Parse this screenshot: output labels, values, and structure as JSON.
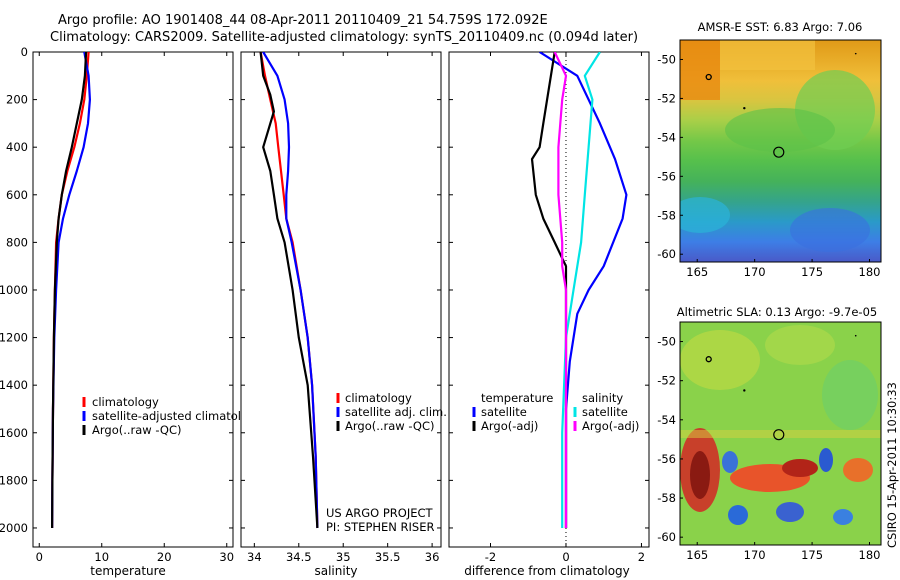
{
  "header": {
    "line1": "Argo profile: AO 1901408_44 08-Apr-2011 20110409_21 54.759S 172.092E",
    "line2": "Climatology: CARS2009. Satellite-adjusted climatology: synTS_20110409.nc (0.094d later)"
  },
  "credit": {
    "vertical_text": "CSIRO 15-Apr-2011 10:30:33",
    "project_line1": "US ARGO PROJECT",
    "project_line2": "PI: STEPHEN RISER"
  },
  "colors": {
    "climatology": "#ff0000",
    "satellite": "#0000ff",
    "argo": "#000000",
    "satellite_diff": "#00e5e5",
    "argo_diff": "#ff00ff"
  },
  "chart_data": [
    {
      "type": "line",
      "xlabel": "temperature",
      "ylabel": "",
      "xlim": [
        -1,
        31
      ],
      "ylim": [
        0,
        2080
      ],
      "y_reversed": true,
      "xticks": [
        0,
        10,
        20,
        30
      ],
      "yticks": [
        0,
        200,
        400,
        600,
        800,
        1000,
        1200,
        1400,
        1600,
        1800,
        2000
      ],
      "legend": [
        "climatology",
        "satellite-adjusted climatology",
        "Argo(..raw -QC)"
      ],
      "series": [
        {
          "name": "climatology",
          "color": "#ff0000",
          "x": [
            7.9,
            7.6,
            7.2,
            6.5,
            5.6,
            4.5,
            3.6,
            3.1,
            2.7,
            2.5,
            2.35,
            2.2,
            2.1,
            2.05
          ],
          "y": [
            0,
            100,
            200,
            300,
            400,
            500,
            600,
            700,
            800,
            1000,
            1200,
            1500,
            1800,
            2000
          ]
        },
        {
          "name": "satellite-adjusted climatology",
          "color": "#0000ff",
          "x": [
            7.2,
            7.9,
            8.1,
            7.8,
            7.1,
            6.0,
            4.8,
            3.8,
            3.1,
            2.7,
            2.4,
            2.2,
            2.1,
            2.05
          ],
          "y": [
            0,
            100,
            200,
            300,
            400,
            500,
            600,
            700,
            800,
            1000,
            1200,
            1500,
            1800,
            2000
          ]
        },
        {
          "name": "Argo(..raw -QC)",
          "color": "#000000",
          "x": [
            7.5,
            7.3,
            6.8,
            6.0,
            5.2,
            4.3,
            3.6,
            3.1,
            2.8,
            2.5,
            2.35,
            2.2,
            2.1,
            2.05
          ],
          "y": [
            0,
            100,
            200,
            300,
            400,
            500,
            600,
            700,
            800,
            1000,
            1200,
            1500,
            1800,
            2000
          ]
        }
      ]
    },
    {
      "type": "line",
      "xlabel": "salinity",
      "ylabel": "",
      "xlim": [
        33.85,
        36.1
      ],
      "ylim": [
        0,
        2080
      ],
      "y_reversed": true,
      "xticks": [
        34,
        34.5,
        35,
        35.5,
        36
      ],
      "xtick_labels": [
        "34",
        "34.5",
        "35",
        "35.5",
        "36"
      ],
      "yticks": [
        0,
        200,
        400,
        600,
        800,
        1000,
        1200,
        1400,
        1600,
        1800,
        2000
      ],
      "legend": [
        "climatology",
        "satellite adj. clim.",
        "Argo(..raw -QC)"
      ],
      "series": [
        {
          "name": "climatology",
          "color": "#ff0000",
          "x": [
            34.07,
            34.12,
            34.18,
            34.24,
            34.27,
            34.3,
            34.33,
            34.36,
            34.43,
            34.52,
            34.6,
            34.65,
            34.69,
            34.71
          ],
          "y": [
            0,
            100,
            200,
            300,
            400,
            500,
            600,
            700,
            800,
            1000,
            1200,
            1400,
            1700,
            2000
          ]
        },
        {
          "name": "satellite adj. clim.",
          "color": "#0000ff",
          "x": [
            34.1,
            34.26,
            34.34,
            34.38,
            34.39,
            34.38,
            34.36,
            34.36,
            34.42,
            34.52,
            34.6,
            34.65,
            34.69,
            34.71
          ],
          "y": [
            0,
            100,
            200,
            300,
            400,
            500,
            600,
            700,
            800,
            1000,
            1200,
            1400,
            1700,
            2000
          ]
        },
        {
          "name": "Argo(..raw -QC)",
          "color": "#000000",
          "x": [
            34.07,
            34.1,
            34.18,
            34.22,
            34.1,
            34.18,
            34.22,
            34.26,
            34.34,
            34.43,
            34.5,
            34.6,
            34.66,
            34.71
          ],
          "y": [
            0,
            100,
            180,
            250,
            400,
            500,
            600,
            700,
            800,
            1000,
            1200,
            1400,
            1700,
            2000
          ]
        }
      ]
    },
    {
      "type": "line",
      "xlabel": "difference from climatology",
      "ylabel": "",
      "xlim": [
        -3.1,
        2.2
      ],
      "ylim": [
        0,
        2080
      ],
      "y_reversed": true,
      "xticks": [
        -2,
        0,
        2
      ],
      "yticks": [
        0,
        200,
        400,
        600,
        800,
        1000,
        1200,
        1400,
        1600,
        1800,
        2000
      ],
      "legend_left_title": "temperature",
      "legend_right_title": "salinity",
      "legend": [
        "satellite",
        "Argo(-adj)",
        "satellite",
        "Argo(-adj)"
      ],
      "series": [
        {
          "name": "satellite",
          "group": "temperature",
          "color": "#0000ff",
          "x": [
            -0.7,
            0.3,
            0.9,
            1.3,
            1.6,
            1.5,
            1.0,
            0.6,
            0.3,
            0.1,
            0.0,
            0.0,
            0.0
          ],
          "y": [
            0,
            100,
            300,
            450,
            600,
            700,
            900,
            1000,
            1100,
            1300,
            1500,
            1800,
            2000
          ]
        },
        {
          "name": "Argo(-adj)",
          "group": "temperature",
          "color": "#000000",
          "x": [
            -0.3,
            -0.5,
            -0.6,
            -0.7,
            -0.9,
            -0.8,
            -0.6,
            -0.3,
            0.0,
            0.0,
            0.0,
            0.0
          ],
          "y": [
            0,
            200,
            300,
            400,
            450,
            600,
            700,
            800,
            900,
            1100,
            1500,
            2000
          ]
        },
        {
          "name": "satellite",
          "group": "salinity",
          "color": "#00e5e5",
          "x": [
            0.9,
            0.5,
            0.7,
            0.6,
            0.5,
            0.4,
            0.3,
            0.2,
            0.0,
            -0.1,
            -0.1
          ],
          "y": [
            0,
            100,
            200,
            400,
            600,
            800,
            900,
            1000,
            1200,
            1600,
            2000
          ]
        },
        {
          "name": "Argo(-adj)",
          "group": "salinity",
          "color": "#ff00ff",
          "x": [
            -0.3,
            0.0,
            -0.1,
            -0.2,
            -0.2,
            -0.1,
            -0.1,
            0.0,
            0.0,
            0.0
          ],
          "y": [
            0,
            100,
            200,
            400,
            600,
            800,
            900,
            1000,
            1500,
            2000
          ]
        }
      ]
    },
    {
      "type": "heatmap",
      "title": "AMSR-E SST: 6.83 Argo: 7.06",
      "xlim": [
        163.5,
        181
      ],
      "ylim": [
        -60.4,
        -49
      ],
      "xticks": [
        165,
        170,
        175,
        180
      ],
      "yticks": [
        -50,
        -52,
        -54,
        -56,
        -58,
        -60
      ],
      "colormap": "jet",
      "profile_marker": {
        "x": 172.1,
        "y": -54.76
      },
      "rows": [
        "#e09a18",
        "#e8ac28",
        "#f0bf3a",
        "#d8c540",
        "#a8cf48",
        "#74c848",
        "#56c04c",
        "#45b25a",
        "#35a48a",
        "#2a9ac8",
        "#3d7ee6",
        "#4a5ac8"
      ]
    },
    {
      "type": "heatmap",
      "title": "Altimetric SLA: 0.13 Argo: -9.7e-05",
      "xlim": [
        163.5,
        181
      ],
      "ylim": [
        -60.4,
        -49
      ],
      "xticks": [
        165,
        170,
        175,
        180
      ],
      "yticks": [
        -50,
        -52,
        -54,
        -56,
        -58,
        -60
      ],
      "colormap": "jet",
      "profile_marker": {
        "x": 172.1,
        "y": -54.76
      }
    }
  ]
}
